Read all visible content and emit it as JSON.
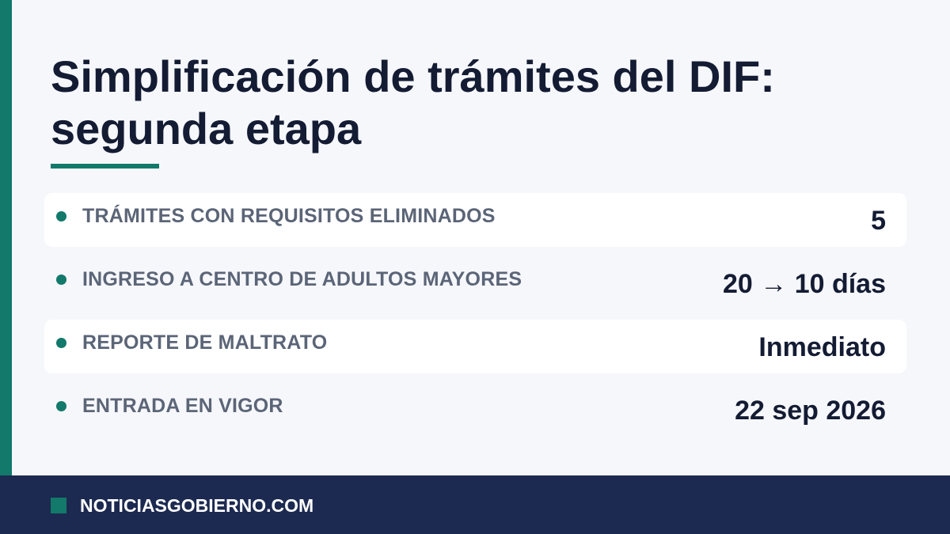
{
  "header": {
    "title": "Simplificación de trámites del DIF:\nsegunda etapa"
  },
  "rows": [
    {
      "label": "TRÁMITES CON REQUISITOS ELIMINADOS",
      "value": "5"
    },
    {
      "label": "INGRESO A CENTRO DE ADULTOS MAYORES",
      "value": "20 → 10 días"
    },
    {
      "label": "REPORTE DE MALTRATO",
      "value": "Inmediato"
    },
    {
      "label": "ENTRADA EN VIGOR",
      "value": "22 sep 2026"
    }
  ],
  "footer": {
    "brand": "NOTICIASGOBIERNO.COM"
  },
  "colors": {
    "accent": "#12796b",
    "title": "#141c34",
    "label": "#5b6577",
    "footer_bg": "#1c2950",
    "background": "#f6f7fb"
  }
}
